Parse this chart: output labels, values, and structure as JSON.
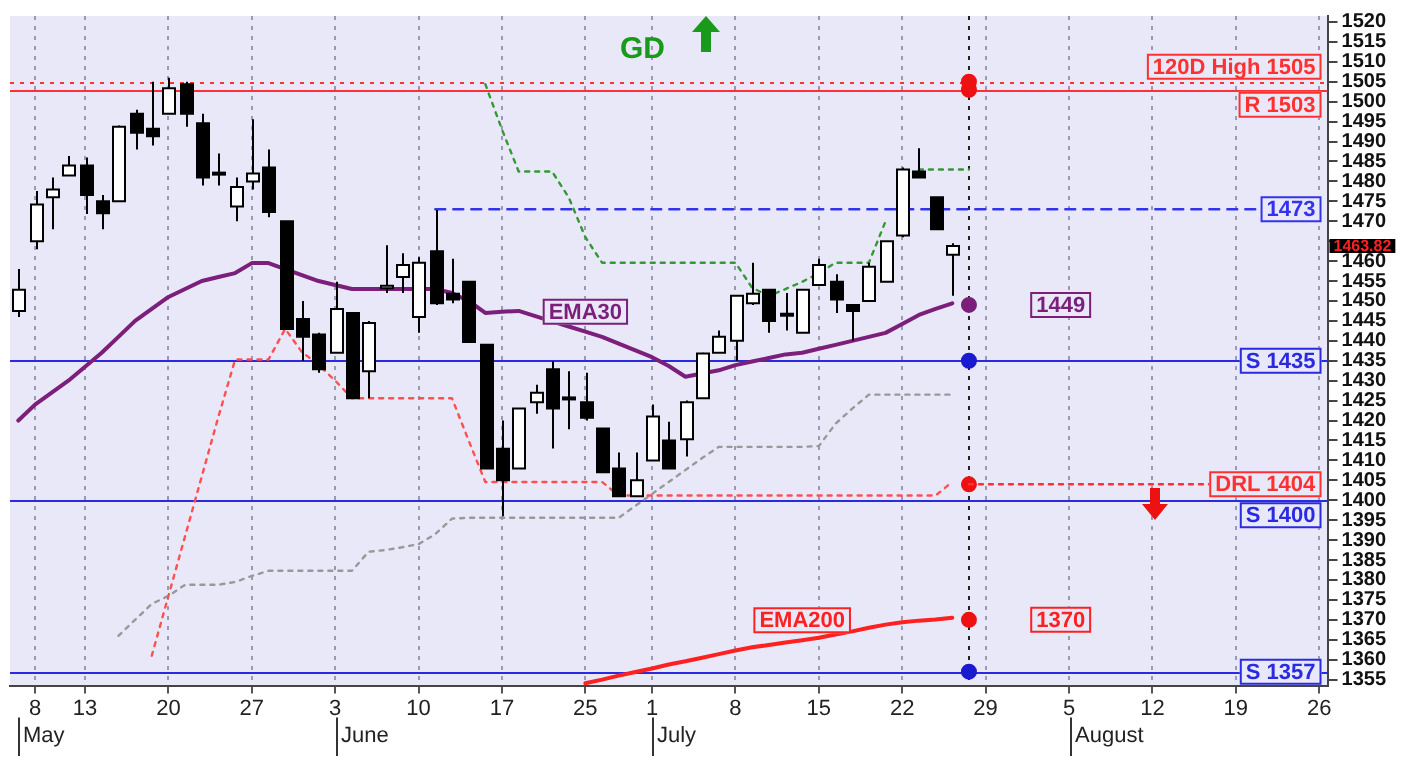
{
  "chart_data": {
    "type": "candlestick",
    "categories": [
      null,
      "8",
      null,
      null,
      "13",
      null,
      null,
      null,
      null,
      "20",
      null,
      null,
      null,
      null,
      "27",
      null,
      null,
      null,
      null,
      "3",
      null,
      null,
      null,
      null,
      "10",
      null,
      null,
      null,
      null,
      "17",
      null,
      null,
      null,
      null,
      "25",
      null,
      null,
      null,
      "1",
      null,
      null,
      null,
      null,
      "8",
      null,
      null,
      null,
      null,
      "15",
      null,
      null,
      null,
      null,
      "22",
      null,
      null,
      null,
      null,
      "29",
      null,
      null,
      null,
      null,
      "5",
      null,
      null,
      null,
      null,
      "12",
      null,
      null,
      null,
      null,
      "19",
      null,
      null,
      null,
      null,
      "26"
    ],
    "ohlc": [
      [
        1447.5,
        1458,
        1446,
        1452.8
      ],
      [
        1465,
        1477.6,
        1463,
        1474.2
      ],
      [
        1476,
        1481,
        1468,
        1478
      ],
      [
        1481.5,
        1486.4,
        1481.5,
        1484
      ],
      [
        1484,
        1486,
        1471.8,
        1476.6
      ],
      [
        1475,
        1476.6,
        1468,
        1472
      ],
      [
        1475,
        1494,
        1475,
        1493.7
      ],
      [
        1497,
        1498,
        1488,
        1492.2
      ],
      [
        1493.2,
        1505,
        1489,
        1491.3
      ],
      [
        1497,
        1506,
        1497,
        1503.4
      ],
      [
        1504.4,
        1505,
        1493.7,
        1497
      ],
      [
        1494.6,
        1497,
        1479,
        1481
      ],
      [
        1482.2,
        1487,
        1479,
        1481.8
      ],
      [
        1473.7,
        1481,
        1470,
        1478.6
      ],
      [
        1480,
        1495.6,
        1478,
        1482
      ],
      [
        1483.5,
        1488,
        1471,
        1472.3
      ],
      [
        1470,
        1470,
        1443,
        1443
      ],
      [
        1445.5,
        1450,
        1435,
        1441
      ],
      [
        1441.6,
        1442,
        1432,
        1432.9
      ],
      [
        1437,
        1454.8,
        1437,
        1448
      ],
      [
        1447,
        1447,
        1425.6,
        1425.6
      ],
      [
        1432.4,
        1445,
        1425.6,
        1444.5
      ],
      [
        1453.2,
        1464,
        1452,
        1453.8
      ],
      [
        1456,
        1462,
        1452,
        1459
      ],
      [
        1446,
        1461,
        1442,
        1459.6
      ],
      [
        1462.5,
        1472.8,
        1449,
        1449.4
      ],
      [
        1451.8,
        1460.6,
        1449.4,
        1450.4
      ],
      [
        1454.8,
        1455,
        1439.7,
        1439.7
      ],
      [
        1439,
        1439,
        1408,
        1408
      ],
      [
        1412.9,
        1420,
        1396,
        1405
      ],
      [
        1408,
        1423,
        1408,
        1423
      ],
      [
        1424.6,
        1429,
        1421.7,
        1427
      ],
      [
        1432.9,
        1434.8,
        1413,
        1423
      ],
      [
        1425.8,
        1432.4,
        1417.8,
        1425.6
      ],
      [
        1424.6,
        1432,
        1420,
        1420.7
      ],
      [
        1418,
        1418,
        1407,
        1407
      ],
      [
        1408,
        1412,
        1401,
        1401
      ],
      [
        1401,
        1412,
        1401,
        1405
      ],
      [
        1410,
        1424,
        1410,
        1421
      ],
      [
        1415,
        1419.7,
        1408,
        1408
      ],
      [
        1415.3,
        1425,
        1411,
        1424.6
      ],
      [
        1425.6,
        1437,
        1425.6,
        1436.8
      ],
      [
        1437,
        1442.6,
        1437,
        1441
      ],
      [
        1440,
        1451.3,
        1435,
        1451.3
      ],
      [
        1449.4,
        1459.6,
        1449,
        1451.8
      ],
      [
        1452.8,
        1453,
        1442,
        1445
      ],
      [
        1446.8,
        1452,
        1442.6,
        1446.5
      ],
      [
        1442,
        1453,
        1442,
        1452.8
      ],
      [
        1454,
        1460.6,
        1454,
        1459
      ],
      [
        1454.8,
        1456.7,
        1447,
        1450.4
      ],
      [
        1449,
        1449,
        1440,
        1447.5
      ],
      [
        1450,
        1459.6,
        1450,
        1458.6
      ],
      [
        1454.8,
        1465,
        1454.8,
        1465
      ],
      [
        1466.4,
        1483.5,
        1466,
        1483
      ],
      [
        1482.5,
        1488.3,
        1481,
        1481
      ],
      [
        1476,
        1476,
        1468,
        1468
      ],
      [
        1461.6,
        1464.5,
        1451.3,
        1463.82
      ],
      null,
      null,
      null,
      null,
      null,
      null,
      null,
      null,
      null,
      null,
      null,
      null,
      null,
      null,
      null,
      null,
      null,
      null,
      null,
      null,
      null,
      null
    ],
    "series": [
      {
        "type": "line",
        "name": "EMA30",
        "color": "#7b1f7b",
        "line_style": "solid",
        "values": [
          1420,
          1424,
          1427,
          1430,
          1433.5,
          1437,
          1441,
          1445,
          1448,
          1451,
          1453,
          1455,
          1456,
          1457,
          1459.5,
          1459.5,
          1458,
          1456.5,
          1455,
          1454,
          1453,
          1453,
          1453,
          1453,
          1453,
          1453,
          1452,
          1450,
          1447,
          1447.3,
          1447.5,
          1446.2,
          1444.9,
          1443.6,
          1442.3,
          1441,
          1439.3,
          1437.6,
          1435.9,
          1433.7,
          1431,
          1431.8,
          1432.6,
          1433.9,
          1434.8,
          1435.7,
          1436.6,
          1437,
          1438,
          1439,
          1440,
          1441,
          1442,
          1444.2,
          1446.5,
          1448,
          1449.4,
          null,
          null,
          null,
          null,
          null,
          null,
          null,
          null,
          null,
          null,
          null,
          null,
          null,
          null,
          null,
          null,
          null,
          null,
          null,
          null,
          null,
          null
        ]
      },
      {
        "type": "line",
        "name": "EMA200",
        "color": "#ff2020",
        "line_style": "solid",
        "values": [
          null,
          null,
          null,
          null,
          null,
          null,
          null,
          null,
          null,
          null,
          null,
          null,
          null,
          null,
          null,
          null,
          null,
          null,
          null,
          null,
          null,
          null,
          null,
          null,
          null,
          null,
          null,
          null,
          null,
          null,
          null,
          null,
          null,
          null,
          1354.1,
          1355,
          1356,
          1356.9,
          1357.8,
          1358.8,
          1359.6,
          1360.5,
          1361.4,
          1362.3,
          1363.1,
          1363.7,
          1364.3,
          1364.9,
          1365.5,
          1366.3,
          1367.1,
          1368,
          1368.8,
          1369.4,
          1369.8,
          1370.1,
          1370.5,
          null,
          null,
          null,
          null,
          null,
          null,
          null,
          null,
          null,
          null,
          null,
          null,
          null,
          null,
          null,
          null,
          null,
          null,
          null,
          null,
          null,
          null
        ]
      },
      {
        "type": "line",
        "color": "#ff5050",
        "line_style": "dotted",
        "values": [
          null,
          null,
          null,
          null,
          null,
          null,
          null,
          null,
          1361,
          1376,
          1391,
          1406,
          1421,
          1435.3,
          1435.3,
          1435.3,
          1443,
          1437.2,
          1434,
          1430,
          1425.6,
          1425.6,
          1425.6,
          1425.6,
          1425.6,
          1425.6,
          1425.6,
          1415,
          1404.6,
          1404.6,
          1404.6,
          1404.6,
          1404.6,
          1404.6,
          1404.6,
          1404.6,
          1401.2,
          1401.2,
          1401.2,
          1401.2,
          1401.2,
          1401.2,
          1401.2,
          1401.2,
          1401.2,
          1401.2,
          1401.2,
          1401.2,
          1401.2,
          1401.2,
          1401.2,
          1401.2,
          1401.2,
          1401.2,
          1401.2,
          1401.2,
          1404.6,
          null,
          null,
          null,
          null,
          null,
          null,
          null,
          null,
          null,
          null,
          null,
          null,
          null,
          null,
          null,
          null,
          null,
          null,
          null,
          null,
          null,
          null
        ]
      },
      {
        "type": "line",
        "color": "#339933",
        "line_style": "dotted",
        "values": [
          null,
          null,
          null,
          null,
          null,
          null,
          null,
          null,
          null,
          null,
          null,
          null,
          null,
          null,
          null,
          null,
          null,
          null,
          null,
          null,
          null,
          null,
          null,
          null,
          null,
          null,
          null,
          null,
          1504.4,
          1493,
          1482.5,
          1482.5,
          1482.5,
          1476,
          1466,
          1459.6,
          1459.6,
          1459.6,
          1459.6,
          1459.6,
          1459.6,
          1459.6,
          1459.6,
          1459.6,
          1453.3,
          1451.3,
          1453,
          1454.8,
          1457,
          1459.6,
          1459.6,
          1459.6,
          1470,
          null,
          1483,
          1483,
          1483,
          1483,
          null,
          null,
          null,
          null,
          null,
          null,
          null,
          null,
          null,
          null,
          null,
          null,
          null,
          null,
          null,
          null,
          null,
          null,
          null,
          null,
          null
        ]
      },
      {
        "type": "line",
        "color": "#999999",
        "line_style": "dotted",
        "values": [
          null,
          null,
          null,
          null,
          null,
          null,
          1366,
          1370,
          1374,
          1376,
          1378.8,
          1378.8,
          1378.8,
          1379.5,
          1381,
          1382.3,
          1382.3,
          1382.3,
          1382.3,
          1382.3,
          1382.3,
          1387.1,
          1387.5,
          1388.2,
          1389,
          1391.5,
          1395.4,
          1395.6,
          1395.6,
          1395.6,
          1395.6,
          1395.6,
          1395.6,
          1395.6,
          1395.6,
          1395.6,
          1395.6,
          1398.6,
          1401.6,
          1404.6,
          1407.6,
          1410.6,
          1413.4,
          1413.4,
          1413.4,
          1413.4,
          1413.4,
          1413.4,
          1413.6,
          1419.2,
          1423,
          1426.5,
          1426.5,
          1426.5,
          1426.5,
          1426.5,
          1426.5,
          null,
          null,
          null,
          null,
          null,
          null,
          null,
          null,
          null,
          null,
          null,
          null,
          null,
          null,
          null,
          null,
          null,
          null,
          null,
          null,
          null,
          null
        ]
      },
      {
        "type": "line",
        "color": "#3333ee",
        "line_style": "dashed",
        "values": [
          null,
          null,
          null,
          null,
          null,
          null,
          null,
          null,
          null,
          null,
          null,
          null,
          null,
          null,
          null,
          null,
          null,
          null,
          null,
          null,
          null,
          null,
          null,
          null,
          null,
          1473,
          1473,
          1473,
          1473,
          1473,
          1473,
          1473,
          1473,
          1473,
          1473,
          1473,
          1473,
          1473,
          1473,
          1473,
          1473,
          1473,
          1473,
          1473,
          1473,
          1473,
          1473,
          1473,
          1473,
          1473,
          1473,
          1473,
          1473,
          1473,
          1473,
          1473,
          1473,
          1473,
          1473,
          1473,
          1473,
          1473,
          1473,
          1473,
          1473,
          1473,
          1473,
          1473,
          1473,
          1473,
          1473,
          1473,
          1473,
          1473,
          1473,
          1473,
          1473,
          1473,
          1473
        ]
      },
      {
        "type": "line",
        "color": "#ff3030",
        "line_style": "dotted",
        "values": [
          null,
          null,
          null,
          null,
          null,
          null,
          null,
          null,
          null,
          null,
          null,
          null,
          null,
          null,
          null,
          null,
          null,
          null,
          null,
          null,
          null,
          null,
          null,
          null,
          null,
          null,
          null,
          null,
          null,
          null,
          null,
          null,
          null,
          null,
          null,
          null,
          null,
          null,
          null,
          null,
          null,
          null,
          null,
          null,
          null,
          null,
          null,
          null,
          null,
          null,
          null,
          null,
          null,
          null,
          null,
          null,
          null,
          1404,
          1404,
          1404,
          1404,
          1404,
          1404,
          1404,
          1404,
          1404,
          1404,
          1404,
          1404,
          1404,
          1404,
          1404,
          1404,
          1404,
          1404,
          1404,
          1404,
          1404,
          1404
        ]
      },
      {
        "type": "scatter",
        "marker": "circle",
        "color": "#ee1111",
        "values": [
          null,
          null,
          null,
          null,
          null,
          null,
          null,
          null,
          null,
          null,
          null,
          null,
          null,
          null,
          null,
          null,
          null,
          null,
          null,
          null,
          null,
          null,
          null,
          null,
          null,
          null,
          null,
          null,
          null,
          null,
          null,
          null,
          null,
          null,
          null,
          null,
          null,
          null,
          null,
          null,
          null,
          null,
          null,
          null,
          null,
          null,
          null,
          null,
          null,
          null,
          null,
          null,
          null,
          null,
          null,
          null,
          null,
          1505,
          null,
          null,
          null,
          null,
          null,
          null,
          null,
          null,
          null,
          null,
          null,
          null,
          null,
          null,
          null,
          null,
          null,
          null,
          null,
          null,
          null
        ]
      },
      {
        "type": "scatter",
        "marker": "circle",
        "color": "#ee1111",
        "values": [
          null,
          null,
          null,
          null,
          null,
          null,
          null,
          null,
          null,
          null,
          null,
          null,
          null,
          null,
          null,
          null,
          null,
          null,
          null,
          null,
          null,
          null,
          null,
          null,
          null,
          null,
          null,
          null,
          null,
          null,
          null,
          null,
          null,
          null,
          null,
          null,
          null,
          null,
          null,
          null,
          null,
          null,
          null,
          null,
          null,
          null,
          null,
          null,
          null,
          null,
          null,
          null,
          null,
          null,
          null,
          null,
          null,
          1503,
          null,
          null,
          null,
          null,
          null,
          null,
          null,
          null,
          null,
          null,
          null,
          null,
          null,
          null,
          null,
          null,
          null,
          null,
          null,
          null,
          null
        ]
      },
      {
        "type": "scatter",
        "marker": "circle",
        "color": "#7b1f7b",
        "values": [
          null,
          null,
          null,
          null,
          null,
          null,
          null,
          null,
          null,
          null,
          null,
          null,
          null,
          null,
          null,
          null,
          null,
          null,
          null,
          null,
          null,
          null,
          null,
          null,
          null,
          null,
          null,
          null,
          null,
          null,
          null,
          null,
          null,
          null,
          null,
          null,
          null,
          null,
          null,
          null,
          null,
          null,
          null,
          null,
          null,
          null,
          null,
          null,
          null,
          null,
          null,
          null,
          null,
          null,
          null,
          null,
          null,
          1449,
          null,
          null,
          null,
          null,
          null,
          null,
          null,
          null,
          null,
          null,
          null,
          null,
          null,
          null,
          null,
          null,
          null,
          null,
          null,
          null,
          null
        ]
      },
      {
        "type": "scatter",
        "marker": "circle",
        "color": "#1a1ad0",
        "values": [
          null,
          null,
          null,
          null,
          null,
          null,
          null,
          null,
          null,
          null,
          null,
          null,
          null,
          null,
          null,
          null,
          null,
          null,
          null,
          null,
          null,
          null,
          null,
          null,
          null,
          null,
          null,
          null,
          null,
          null,
          null,
          null,
          null,
          null,
          null,
          null,
          null,
          null,
          null,
          null,
          null,
          null,
          null,
          null,
          null,
          null,
          null,
          null,
          null,
          null,
          null,
          null,
          null,
          null,
          null,
          null,
          null,
          1435,
          null,
          null,
          null,
          null,
          null,
          null,
          null,
          null,
          null,
          null,
          null,
          null,
          null,
          null,
          null,
          null,
          null,
          null,
          null,
          null,
          null
        ]
      },
      {
        "type": "scatter",
        "marker": "circle",
        "color": "#ee1111",
        "values": [
          null,
          null,
          null,
          null,
          null,
          null,
          null,
          null,
          null,
          null,
          null,
          null,
          null,
          null,
          null,
          null,
          null,
          null,
          null,
          null,
          null,
          null,
          null,
          null,
          null,
          null,
          null,
          null,
          null,
          null,
          null,
          null,
          null,
          null,
          null,
          null,
          null,
          null,
          null,
          null,
          null,
          null,
          null,
          null,
          null,
          null,
          null,
          null,
          null,
          null,
          null,
          null,
          null,
          null,
          null,
          null,
          null,
          1404,
          null,
          null,
          null,
          null,
          null,
          null,
          null,
          null,
          null,
          null,
          null,
          null,
          null,
          null,
          null,
          null,
          null,
          null,
          null,
          null,
          null
        ]
      },
      {
        "type": "scatter",
        "marker": "circle",
        "color": "#ee1111",
        "values": [
          null,
          null,
          null,
          null,
          null,
          null,
          null,
          null,
          null,
          null,
          null,
          null,
          null,
          null,
          null,
          null,
          null,
          null,
          null,
          null,
          null,
          null,
          null,
          null,
          null,
          null,
          null,
          null,
          null,
          null,
          null,
          null,
          null,
          null,
          null,
          null,
          null,
          null,
          null,
          null,
          null,
          null,
          null,
          null,
          null,
          null,
          null,
          null,
          null,
          null,
          null,
          null,
          null,
          null,
          null,
          null,
          null,
          1370,
          null,
          null,
          null,
          null,
          null,
          null,
          null,
          null,
          null,
          null,
          null,
          null,
          null,
          null,
          null,
          null,
          null,
          null,
          null,
          null,
          null
        ]
      },
      {
        "type": "scatter",
        "marker": "circle",
        "color": "#1a1ad0",
        "values": [
          null,
          null,
          null,
          null,
          null,
          null,
          null,
          null,
          null,
          null,
          null,
          null,
          null,
          null,
          null,
          null,
          null,
          null,
          null,
          null,
          null,
          null,
          null,
          null,
          null,
          null,
          null,
          null,
          null,
          null,
          null,
          null,
          null,
          null,
          null,
          null,
          null,
          null,
          null,
          null,
          null,
          null,
          null,
          null,
          null,
          null,
          null,
          null,
          null,
          null,
          null,
          null,
          null,
          null,
          null,
          null,
          null,
          1357,
          null,
          null,
          null,
          null,
          null,
          null,
          null,
          null,
          null,
          null,
          null,
          null,
          null,
          null,
          null,
          null,
          null,
          null,
          null,
          null,
          null
        ]
      }
    ],
    "ref_lines": [
      {
        "axis": "y",
        "value": 1505,
        "label": "120D High 1505",
        "color": "#ff3030",
        "line_style": "dotted"
      },
      {
        "axis": "y",
        "value": 1503,
        "label": "R 1503",
        "color": "#ff3030",
        "line_style": "solid"
      },
      {
        "axis": "y",
        "value": 1435,
        "label": "S 1435",
        "color": "#2a2ae0",
        "line_style": "solid"
      },
      {
        "axis": "y",
        "value": 1400,
        "label": "S 1400",
        "color": "#2a2ae0",
        "line_style": "solid"
      },
      {
        "axis": "y",
        "value": 1357,
        "label": "S 1357",
        "color": "#2a2ae0",
        "line_style": "solid"
      }
    ],
    "annotations": [
      "GD",
      "May",
      "June",
      "July",
      "August",
      {
        "text": "1473",
        "y": 1473
      },
      {
        "text": "1449",
        "y": 1449
      },
      {
        "text": "1370",
        "y": 1370
      },
      {
        "text": "DRL 1404",
        "y": 1404
      },
      "1463.82"
    ],
    "ylim": [
      1353.5,
      1521.5
    ],
    "yticks": [
      1355,
      1360,
      1365,
      1370,
      1375,
      1380,
      1385,
      1390,
      1395,
      1400,
      1405,
      1410,
      1415,
      1420,
      1425,
      1430,
      1435,
      1440,
      1445,
      1450,
      1455,
      1460,
      {
        "value": 1465,
        "label": null
      },
      1470,
      1475,
      1480,
      1485,
      1490,
      1495,
      1500,
      1505,
      1510,
      1515,
      1520
    ],
    "grid": "x"
  }
}
